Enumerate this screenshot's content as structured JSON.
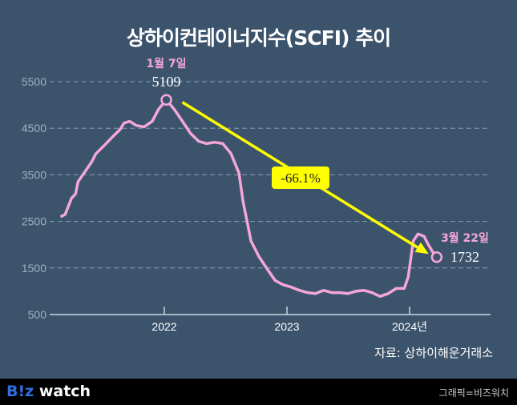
{
  "title": "상하이컨테이너지수(SCFI) 추이",
  "source": "자료: 상하이해운거래소",
  "footer": {
    "logo": "B!z watch",
    "credit": "그래픽=비즈워치"
  },
  "colors": {
    "background": "#3c536c",
    "line": "#f4a6d7",
    "arrow": "#ffff00"
  },
  "chart_data": {
    "type": "line",
    "title": "상하이컨테이너지수(SCFI) 추이",
    "ylim": [
      500,
      5500
    ],
    "yticks": [
      500,
      1500,
      2500,
      3500,
      4500,
      5500
    ],
    "xticks": [
      "2022",
      "2023",
      "2024년"
    ],
    "grid": true,
    "annotations": {
      "peak": {
        "date": "2022-01-07",
        "label": "1월 7일",
        "value": "5109"
      },
      "latest": {
        "date": "2024-03-22",
        "label": "3월 22일",
        "value": "1732"
      },
      "change": "-66.1%"
    },
    "points": [
      [
        "2021-02-26",
        2600
      ],
      [
        "2021-03-12",
        2650
      ],
      [
        "2021-03-31",
        3000
      ],
      [
        "2021-04-12",
        3090
      ],
      [
        "2021-04-19",
        3350
      ],
      [
        "2021-05-13",
        3600
      ],
      [
        "2021-05-30",
        3780
      ],
      [
        "2021-06-11",
        3950
      ],
      [
        "2021-07-05",
        4120
      ],
      [
        "2021-07-29",
        4300
      ],
      [
        "2021-08-22",
        4470
      ],
      [
        "2021-09-03",
        4610
      ],
      [
        "2021-09-20",
        4650
      ],
      [
        "2021-10-09",
        4560
      ],
      [
        "2021-11-02",
        4530
      ],
      [
        "2021-11-26",
        4650
      ],
      [
        "2021-12-15",
        4910
      ],
      [
        "2022-01-07",
        5109
      ],
      [
        "2022-01-31",
        4900
      ],
      [
        "2022-02-24",
        4650
      ],
      [
        "2022-03-20",
        4390
      ],
      [
        "2022-04-13",
        4220
      ],
      [
        "2022-05-07",
        4170
      ],
      [
        "2022-05-31",
        4200
      ],
      [
        "2022-06-24",
        4170
      ],
      [
        "2022-07-18",
        3960
      ],
      [
        "2022-08-11",
        3540
      ],
      [
        "2022-08-23",
        2940
      ],
      [
        "2022-09-16",
        2080
      ],
      [
        "2022-10-10",
        1740
      ],
      [
        "2022-11-03",
        1480
      ],
      [
        "2022-11-27",
        1230
      ],
      [
        "2022-12-21",
        1140
      ],
      [
        "2023-01-14",
        1090
      ],
      [
        "2023-02-07",
        1020
      ],
      [
        "2023-03-03",
        970
      ],
      [
        "2023-03-27",
        950
      ],
      [
        "2023-04-20",
        1020
      ],
      [
        "2023-05-14",
        970
      ],
      [
        "2023-06-07",
        970
      ],
      [
        "2023-07-01",
        950
      ],
      [
        "2023-07-25",
        1000
      ],
      [
        "2023-08-18",
        1020
      ],
      [
        "2023-09-11",
        970
      ],
      [
        "2023-10-05",
        890
      ],
      [
        "2023-10-29",
        950
      ],
      [
        "2023-11-22",
        1060
      ],
      [
        "2023-12-16",
        1060
      ],
      [
        "2023-12-28",
        1310
      ],
      [
        "2024-01-12",
        2080
      ],
      [
        "2024-01-26",
        2230
      ],
      [
        "2024-02-13",
        2180
      ],
      [
        "2024-02-25",
        2010
      ],
      [
        "2024-03-12",
        1820
      ],
      [
        "2024-03-22",
        1732
      ]
    ]
  }
}
